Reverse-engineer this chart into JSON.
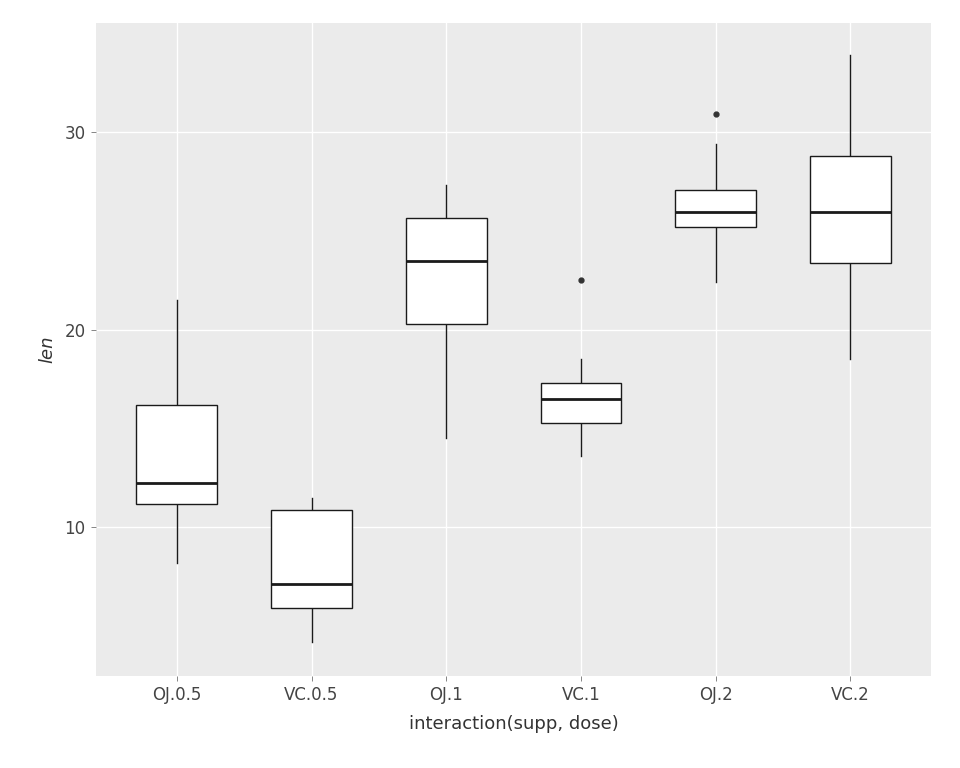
{
  "groups": [
    "OJ.0.5",
    "VC.0.5",
    "OJ.1",
    "VC.1",
    "OJ.2",
    "VC.2"
  ],
  "boxes": [
    {
      "label": "OJ.0.5",
      "q1": 11.2,
      "median": 12.25,
      "q3": 16.175,
      "whisker_low": 8.2,
      "whisker_high": 21.5,
      "outliers": []
    },
    {
      "label": "VC.0.5",
      "q1": 5.95,
      "median": 7.15,
      "q3": 10.9,
      "whisker_low": 4.2,
      "whisker_high": 11.5,
      "outliers": []
    },
    {
      "label": "OJ.1",
      "q1": 20.3,
      "median": 23.45,
      "q3": 25.65,
      "whisker_low": 14.5,
      "whisker_high": 27.3,
      "outliers": []
    },
    {
      "label": "VC.1",
      "q1": 15.275,
      "median": 16.5,
      "q3": 17.3,
      "whisker_low": 13.6,
      "whisker_high": 18.5,
      "outliers": [
        22.5
      ]
    },
    {
      "label": "OJ.2",
      "q1": 25.2,
      "median": 25.95,
      "q3": 27.075,
      "whisker_low": 22.4,
      "whisker_high": 29.4,
      "outliers": [
        30.9
      ]
    },
    {
      "label": "VC.2",
      "q1": 23.375,
      "median": 25.95,
      "q3": 28.8,
      "whisker_low": 18.5,
      "whisker_high": 33.9,
      "outliers": []
    }
  ],
  "ylabel": "len",
  "xlabel": "interaction(supp, dose)",
  "ylim": [
    2.5,
    35.5
  ],
  "yticks": [
    10,
    20,
    30
  ],
  "panel_background": "#EBEBEB",
  "figure_background": "#FFFFFF",
  "grid_color": "#FFFFFF",
  "box_fill": "#FFFFFF",
  "box_edge_color": "#1A1A1A",
  "median_color": "#1A1A1A",
  "whisker_color": "#1A1A1A",
  "flier_color": "#333333",
  "label_fontsize": 13,
  "tick_fontsize": 12,
  "box_width": 0.6,
  "linewidth": 1.0,
  "median_linewidth": 2.0
}
